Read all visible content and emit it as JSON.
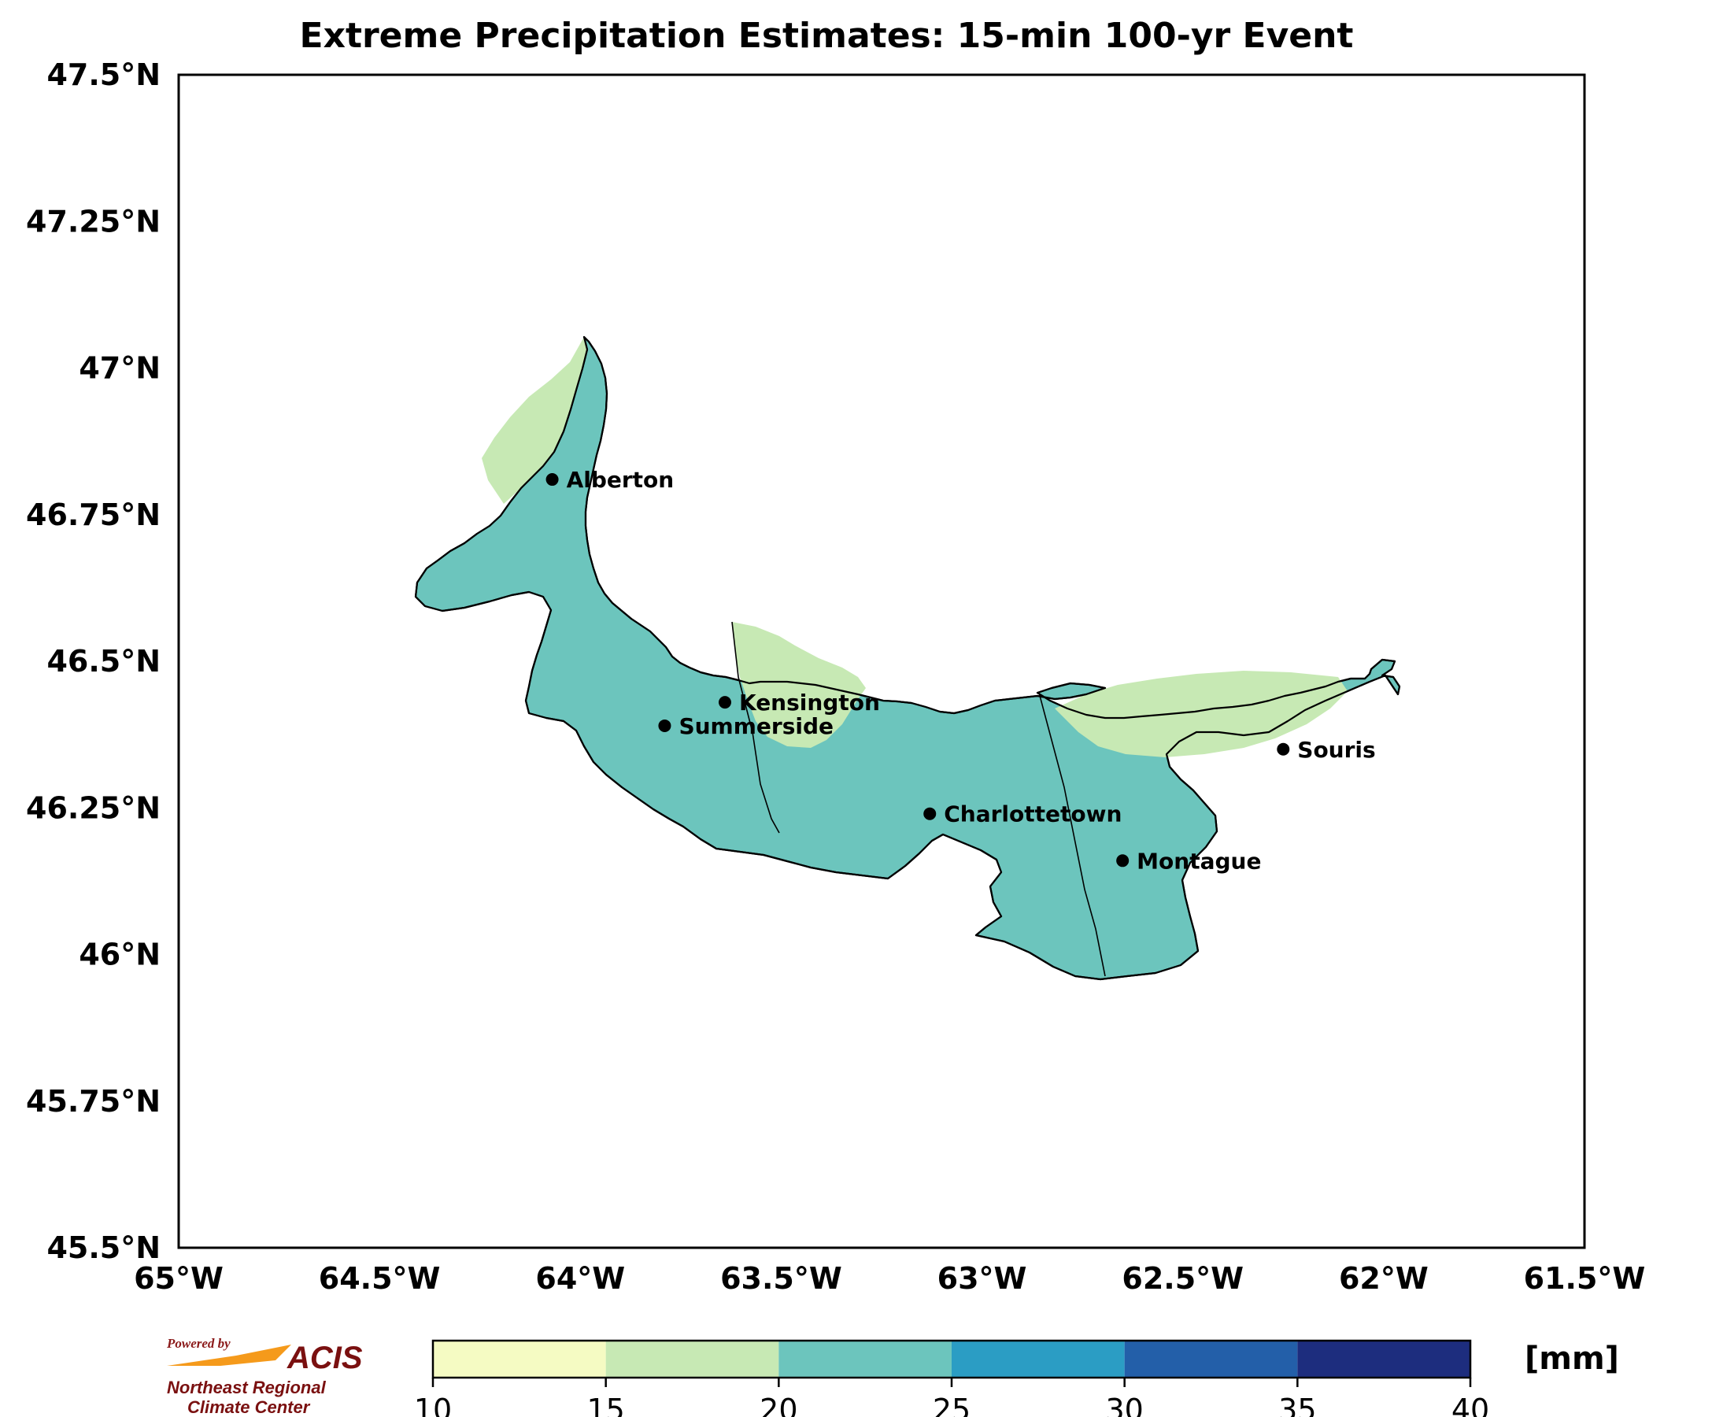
{
  "title": "Extreme Precipitation Estimates: 15-min 100-yr Event",
  "colors": {
    "land_low": "#c7e9b4",
    "land_mid": "#6cc5bd",
    "border": "#000000"
  },
  "map": {
    "lat_ticks": [
      "47.5°N",
      "47.25°N",
      "47°N",
      "46.75°N",
      "46.5°N",
      "46.25°N",
      "46°N",
      "45.75°N",
      "45.5°N"
    ],
    "lon_ticks": [
      "65°W",
      "64.5°W",
      "64°W",
      "63.5°W",
      "63°W",
      "62.5°W",
      "62°W",
      "61.5°W"
    ],
    "lat_range": [
      45.5,
      47.5
    ],
    "lon_range": [
      -65.0,
      -61.5
    ],
    "cities": [
      {
        "name": "Alberton",
        "lon": -64.07,
        "lat": 46.81
      },
      {
        "name": "Kensington",
        "lon": -63.64,
        "lat": 46.43
      },
      {
        "name": "Summerside",
        "lon": -63.79,
        "lat": 46.39
      },
      {
        "name": "Charlottetown",
        "lon": -63.13,
        "lat": 46.24
      },
      {
        "name": "Montague",
        "lon": -62.65,
        "lat": 46.16
      },
      {
        "name": "Souris",
        "lon": -62.25,
        "lat": 46.35
      }
    ]
  },
  "colorbar": {
    "ticks": [
      "10",
      "15",
      "20",
      "25",
      "30",
      "35",
      "40"
    ],
    "colors": [
      "#f5fbc3",
      "#c7e9b4",
      "#6cc5bd",
      "#2b9dc4",
      "#235fa9",
      "#1d2d7e"
    ],
    "unit": "[mm]"
  },
  "logo": {
    "powered_by": "Powered by",
    "name": "ACIS",
    "line1": "Northeast Regional",
    "line2": "Climate Center"
  }
}
